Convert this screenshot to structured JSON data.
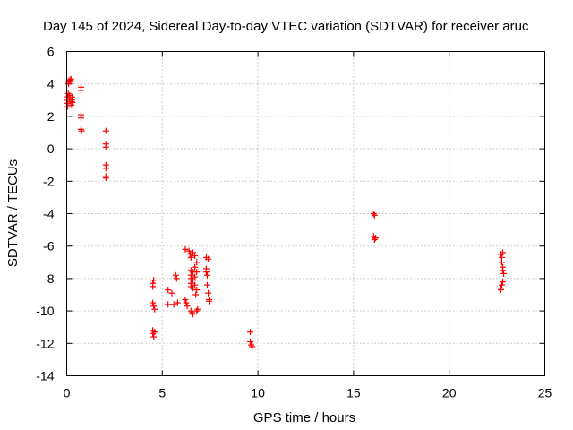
{
  "chart_data": {
    "type": "scatter",
    "title": "Day 145 of 2024, Sidereal Day-to-day VTEC variation (SDTVAR) for receiver aruc",
    "xlabel": "GPS time / hours",
    "ylabel": "SDTVAR / TECUs",
    "xlim": [
      0,
      25
    ],
    "ylim": [
      -14,
      6
    ],
    "xticks": [
      0,
      5,
      10,
      15,
      20,
      25
    ],
    "yticks": [
      -14,
      -12,
      -10,
      -8,
      -6,
      -4,
      -2,
      0,
      2,
      4,
      6
    ],
    "xtick_labels": [
      "0",
      "5",
      "10",
      "15",
      "20",
      "25"
    ],
    "ytick_labels": [
      "-14",
      "-12",
      "-10",
      "-8",
      "-6",
      "-4",
      "-2",
      "0",
      "2",
      "4",
      "6"
    ],
    "grid": true,
    "marker": "plus",
    "color": "#ff0000",
    "series": [
      {
        "name": "SDTVAR",
        "points": [
          [
            0.05,
            2.6
          ],
          [
            0.05,
            2.8
          ],
          [
            0.05,
            3.0
          ],
          [
            0.05,
            3.2
          ],
          [
            0.08,
            3.4
          ],
          [
            0.1,
            4.0
          ],
          [
            0.1,
            4.1
          ],
          [
            0.12,
            4.2
          ],
          [
            0.15,
            3.3
          ],
          [
            0.15,
            3.1
          ],
          [
            0.18,
            4.15
          ],
          [
            0.2,
            4.25
          ],
          [
            0.22,
            4.3
          ],
          [
            0.25,
            2.9
          ],
          [
            0.25,
            2.7
          ],
          [
            0.28,
            3.2
          ],
          [
            0.28,
            3.0
          ],
          [
            0.3,
            2.85
          ],
          [
            0.75,
            3.8
          ],
          [
            0.75,
            3.6
          ],
          [
            0.75,
            2.1
          ],
          [
            0.75,
            1.9
          ],
          [
            0.75,
            1.2
          ],
          [
            0.78,
            1.1
          ],
          [
            2.05,
            1.1
          ],
          [
            2.05,
            0.3
          ],
          [
            2.05,
            0.1
          ],
          [
            2.05,
            -1.0
          ],
          [
            2.05,
            -1.2
          ],
          [
            2.05,
            -1.7
          ],
          [
            2.05,
            -1.8
          ],
          [
            4.5,
            -8.5
          ],
          [
            4.5,
            -8.3
          ],
          [
            4.55,
            -8.1
          ],
          [
            4.5,
            -9.5
          ],
          [
            4.55,
            -9.7
          ],
          [
            4.6,
            -9.9
          ],
          [
            4.5,
            -11.2
          ],
          [
            4.5,
            -11.4
          ],
          [
            4.55,
            -11.6
          ],
          [
            4.6,
            -11.3
          ],
          [
            5.3,
            -8.7
          ],
          [
            5.3,
            -9.6
          ],
          [
            5.5,
            -8.9
          ],
          [
            5.6,
            -9.6
          ],
          [
            5.7,
            -7.8
          ],
          [
            5.75,
            -8.0
          ],
          [
            5.8,
            -9.5
          ],
          [
            6.2,
            -6.2
          ],
          [
            6.2,
            -9.3
          ],
          [
            6.25,
            -9.5
          ],
          [
            6.3,
            -9.7
          ],
          [
            6.4,
            -6.3
          ],
          [
            6.45,
            -6.5
          ],
          [
            6.5,
            -6.7
          ],
          [
            6.5,
            -7.5
          ],
          [
            6.5,
            -7.8
          ],
          [
            6.5,
            -8.0
          ],
          [
            6.5,
            -8.3
          ],
          [
            6.5,
            -8.5
          ],
          [
            6.5,
            -10.0
          ],
          [
            6.55,
            -10.1
          ],
          [
            6.6,
            -6.4
          ],
          [
            6.6,
            -7.6
          ],
          [
            6.6,
            -8.1
          ],
          [
            6.6,
            -8.6
          ],
          [
            6.6,
            -10.2
          ],
          [
            6.7,
            -6.6
          ],
          [
            6.7,
            -7.3
          ],
          [
            6.7,
            -7.9
          ],
          [
            6.7,
            -8.4
          ],
          [
            6.75,
            -9.0
          ],
          [
            6.8,
            -7.0
          ],
          [
            6.8,
            -7.6
          ],
          [
            6.8,
            -8.7
          ],
          [
            6.8,
            -10.0
          ],
          [
            6.85,
            -9.9
          ],
          [
            7.3,
            -6.7
          ],
          [
            7.3,
            -7.4
          ],
          [
            7.3,
            -7.6
          ],
          [
            7.35,
            -7.8
          ],
          [
            7.35,
            -8.4
          ],
          [
            7.4,
            -6.8
          ],
          [
            7.4,
            -8.9
          ],
          [
            7.45,
            -9.3
          ],
          [
            7.45,
            -9.4
          ],
          [
            9.6,
            -11.3
          ],
          [
            9.6,
            -11.9
          ],
          [
            9.65,
            -12.1
          ],
          [
            9.7,
            -12.2
          ],
          [
            16.05,
            -4.0
          ],
          [
            16.1,
            -4.1
          ],
          [
            16.05,
            -5.4
          ],
          [
            16.1,
            -5.6
          ],
          [
            16.15,
            -5.5
          ],
          [
            22.7,
            -6.5
          ],
          [
            22.75,
            -6.7
          ],
          [
            22.8,
            -6.4
          ],
          [
            22.75,
            -7.0
          ],
          [
            22.8,
            -7.3
          ],
          [
            22.8,
            -7.5
          ],
          [
            22.85,
            -7.7
          ],
          [
            22.8,
            -8.2
          ],
          [
            22.75,
            -8.4
          ],
          [
            22.7,
            -8.6
          ],
          [
            22.7,
            -8.7
          ]
        ]
      }
    ]
  }
}
